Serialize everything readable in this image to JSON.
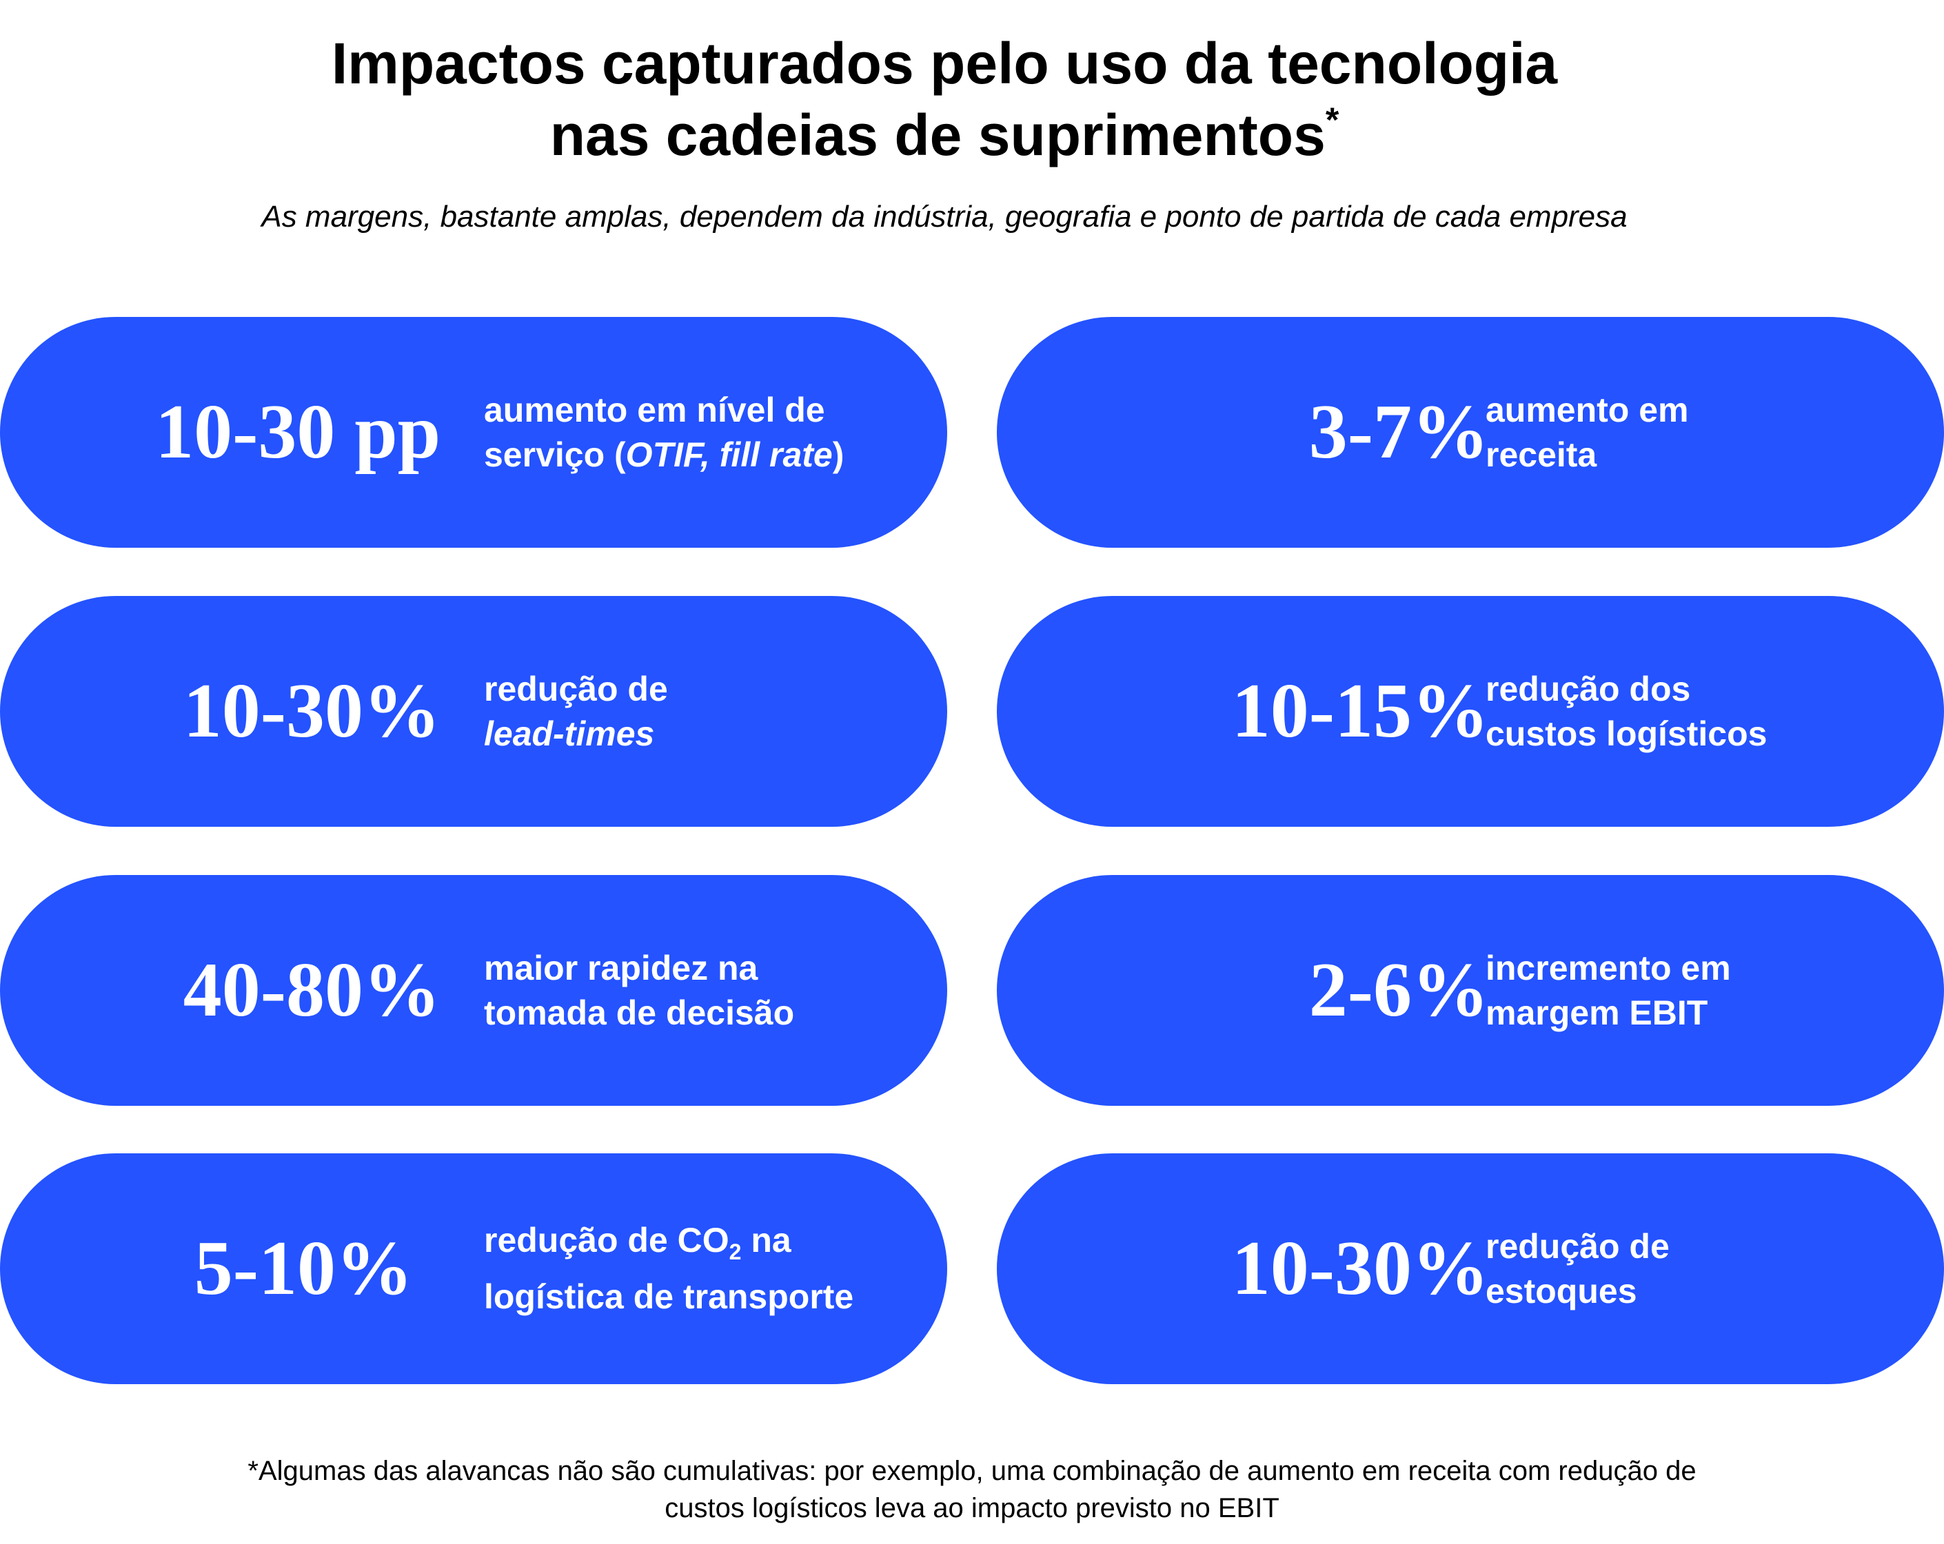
{
  "title": {
    "line1": "Impactos capturados pelo uso da tecnologia",
    "line2": "nas cadeias de suprimentos",
    "asterisk": "*"
  },
  "subtitle": "As margens, bastante amplas, dependem da indústria, geografia e ponto de partida de cada empresa",
  "accent_color": "#2453FF",
  "cards": [
    {
      "value": "10-30 pp",
      "line1": "aumento em nível de",
      "line2_pre": "serviço (",
      "line2_italic": "OTIF, fill rate",
      "line2_post": ")"
    },
    {
      "value": "3-7%",
      "line1": "aumento em",
      "line2": "receita"
    },
    {
      "value": "10-30%",
      "line1": "redução de",
      "line2_italic": "lead-times"
    },
    {
      "value": "10-15%",
      "line1": "redução dos",
      "line2": "custos logísticos"
    },
    {
      "value": "40-80%",
      "line1": "maior rapidez na",
      "line2": "tomada de decisão"
    },
    {
      "value": "2-6%",
      "line1": "incremento em",
      "line2": "margem EBIT"
    },
    {
      "value": "5-10%",
      "line1_pre": "redução de CO",
      "line1_sub": "2",
      "line1_post": " na",
      "line2": "logística de transporte"
    },
    {
      "value": "10-30%",
      "line1": "redução de",
      "line2": "estoques"
    }
  ],
  "footer": {
    "line1": "*Algumas das alavancas não são cumulativas: por exemplo, uma combinação de aumento em receita com redução de",
    "line2": "custos logísticos leva ao impacto previsto no EBIT"
  }
}
